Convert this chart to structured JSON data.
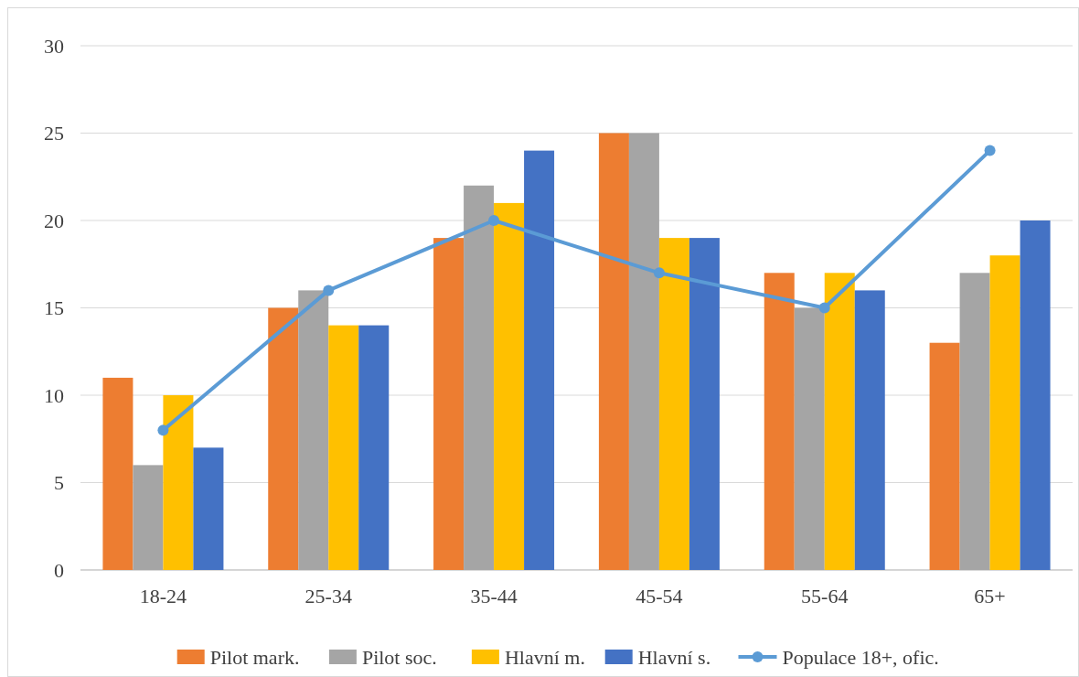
{
  "chart_data": {
    "type": "bar",
    "categories": [
      "18-24",
      "25-34",
      "35-44",
      "45-54",
      "55-64",
      "65+"
    ],
    "series": [
      {
        "name": "Pilot mark.",
        "color": "#ed7d31",
        "values": [
          11,
          15,
          19,
          25,
          17,
          13
        ]
      },
      {
        "name": "Pilot soc.",
        "color": "#a5a5a5",
        "values": [
          6,
          16,
          22,
          25,
          15,
          17
        ]
      },
      {
        "name": "Hlavní m.",
        "color": "#ffc000",
        "values": [
          10,
          14,
          21,
          19,
          17,
          18
        ]
      },
      {
        "name": "Hlavní s.",
        "color": "#4472c4",
        "values": [
          7,
          14,
          24,
          19,
          16,
          20
        ]
      },
      {
        "name": "Populace 18+, ofic.",
        "type": "line",
        "color": "#5b9bd5",
        "values": [
          8,
          16,
          20,
          17,
          15,
          24
        ],
        "marker": "circle"
      }
    ],
    "ylim": [
      0,
      30
    ],
    "yticks": [
      0,
      5,
      10,
      15,
      20,
      25,
      30
    ],
    "grid": "y",
    "legend": "bottom"
  }
}
